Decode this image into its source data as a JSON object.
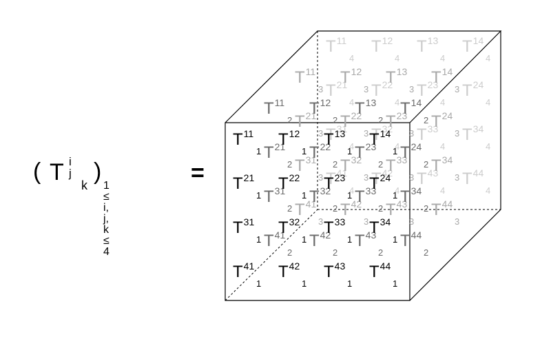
{
  "equation": {
    "open_paren": "(",
    "tensor_symbol": "T",
    "upper_indices": "i j",
    "lower_index": "k",
    "close_paren": ")",
    "index_range": "1 ≤ i, j, k ≤ 4",
    "equals": "="
  },
  "layers": [
    {
      "k": "1",
      "rows": [
        [
          "11",
          "12",
          "13",
          "14"
        ],
        [
          "21",
          "22",
          "23",
          "24"
        ],
        [
          "31",
          "32",
          "33",
          "34"
        ],
        [
          "41",
          "42",
          "43",
          "44"
        ]
      ]
    },
    {
      "k": "2",
      "rows": [
        [
          "11",
          "12",
          "13",
          "14"
        ],
        [
          "21",
          "22",
          "23",
          "24"
        ],
        [
          "31",
          "32",
          "33",
          "34"
        ],
        [
          "41",
          "42",
          "43",
          "44"
        ]
      ]
    },
    {
      "k": "3",
      "rows": [
        [
          "11",
          "12",
          "13",
          "14"
        ],
        [
          "21",
          "22",
          "23",
          "24"
        ],
        [
          "31",
          "32",
          "33",
          "34"
        ],
        [
          "41",
          "42",
          "43",
          "44"
        ]
      ]
    },
    {
      "k": "4",
      "rows": [
        [
          "11",
          "12",
          "13",
          "14"
        ],
        [
          "21",
          "22",
          "23",
          "24"
        ],
        [
          "31",
          "32",
          "33",
          "34"
        ],
        [
          "41",
          "42",
          "43",
          "44"
        ]
      ]
    }
  ],
  "colors": {
    "edge": "#000000",
    "near": "#000000",
    "far": "#cccccc"
  }
}
